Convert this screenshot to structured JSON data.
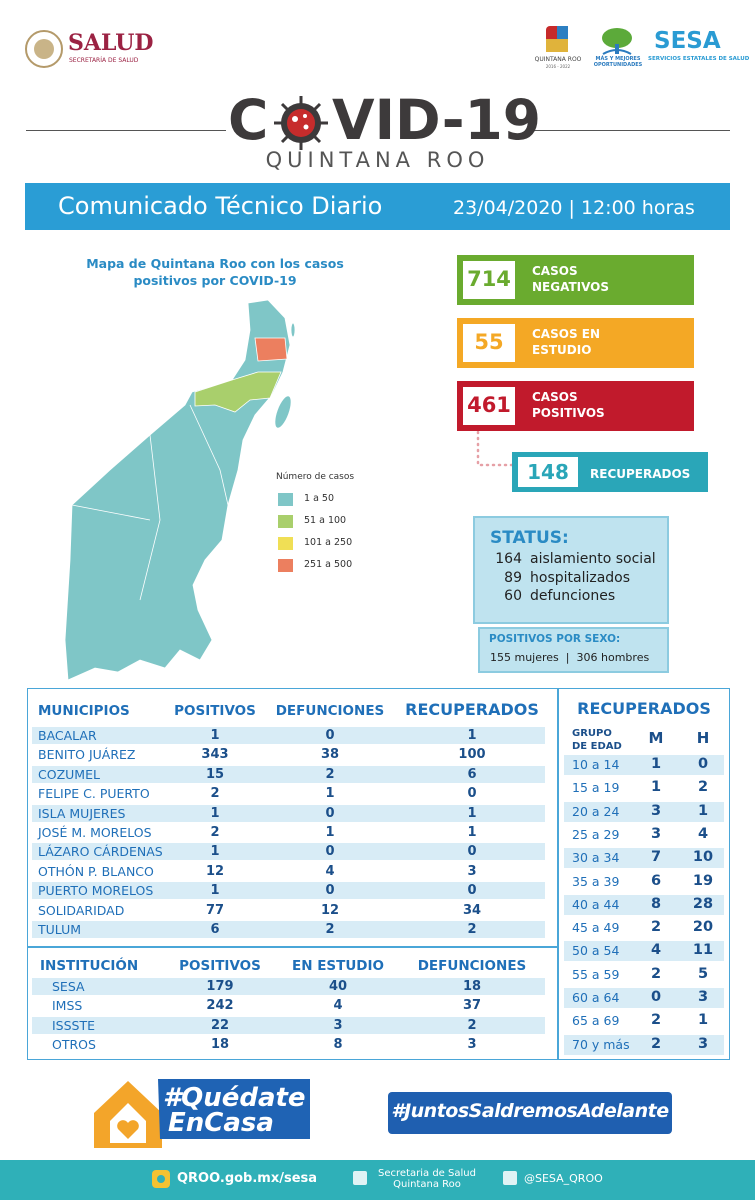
{
  "header": {
    "salud": "SALUD",
    "salud_sub": "SECRETARÍA DE SALUD",
    "qroo": "QUINTANA ROO",
    "qroo_years": "2016 - 2022",
    "oportunidades": "MÁS Y MEJORES OPORTUNIDADES",
    "sesa": "SESA",
    "sesa_sub": "SERVICIOS ESTATALES DE SALUD"
  },
  "title": {
    "start": "C",
    "end": "VID-19",
    "subtitle": "QUINTANA ROO"
  },
  "banner": {
    "title": "Comunicado Técnico Diario",
    "date": "23/04/2020 | 12:00 horas"
  },
  "map": {
    "title": "Mapa de Quintana Roo con los casos positivos por COVID-19",
    "legend_title": "Número de casos",
    "legend": [
      {
        "label": "1 a 50",
        "color": "#7fc6c7"
      },
      {
        "label": "51 a 100",
        "color": "#a9cf6c"
      },
      {
        "label": "101 a 250",
        "color": "#f0df55"
      },
      {
        "label": "251 a 500",
        "color": "#ec7f5f"
      }
    ]
  },
  "cases": [
    {
      "value": 714,
      "label": "CASOS NEGATIVOS",
      "color": "#6aab2f"
    },
    {
      "value": 55,
      "label": "CASOS EN ESTUDIO",
      "color": "#f4a825"
    },
    {
      "value": 461,
      "label": "CASOS POSITIVOS",
      "color": "#c11a2c"
    }
  ],
  "recovered": {
    "value": 148,
    "label": "RECUPERADOS",
    "color": "#2aa6b8"
  },
  "status": {
    "title": "STATUS:",
    "rows": [
      {
        "value": 164,
        "label": "aislamiento social"
      },
      {
        "value": 89,
        "label": "hospitalizados"
      },
      {
        "value": 60,
        "label": "defunciones"
      }
    ]
  },
  "sex": {
    "title": "POSITIVOS POR SEXO:",
    "women": 155,
    "women_label": "mujeres",
    "separator": "|",
    "men": 306,
    "men_label": "hombres"
  },
  "municipios": {
    "headers": [
      "MUNICIPIOS",
      "POSITIVOS",
      "DEFUNCIONES",
      "RECUPERADOS"
    ],
    "rows": [
      [
        "BACALAR",
        1,
        0,
        1
      ],
      [
        "BENITO JUÁREZ",
        343,
        38,
        100
      ],
      [
        "COZUMEL",
        15,
        2,
        6
      ],
      [
        "FELIPE C. PUERTO",
        2,
        1,
        0
      ],
      [
        "ISLA MUJERES",
        1,
        0,
        1
      ],
      [
        "JOSÉ M. MORELOS",
        2,
        1,
        1
      ],
      [
        "LÁZARO CÁRDENAS",
        1,
        0,
        0
      ],
      [
        "OTHÓN P. BLANCO",
        12,
        4,
        3
      ],
      [
        "PUERTO MORELOS",
        1,
        0,
        0
      ],
      [
        "SOLIDARIDAD",
        77,
        12,
        34
      ],
      [
        "TULUM",
        6,
        2,
        2
      ]
    ]
  },
  "instituciones": {
    "headers": [
      "INSTITUCIÓN",
      "POSITIVOS",
      "EN ESTUDIO",
      "DEFUNCIONES"
    ],
    "rows": [
      [
        "SESA",
        179,
        40,
        18
      ],
      [
        "IMSS",
        242,
        4,
        37
      ],
      [
        "ISSSTE",
        22,
        3,
        2
      ],
      [
        "OTROS",
        18,
        8,
        3
      ]
    ]
  },
  "recuperados": {
    "title": "RECUPERADOS",
    "headers": [
      "GRUPO DE EDAD",
      "M",
      "H"
    ],
    "rows": [
      [
        "10 a 14",
        1,
        0
      ],
      [
        "15 a 19",
        1,
        2
      ],
      [
        "20 a 24",
        3,
        1
      ],
      [
        "25 a 29",
        3,
        4
      ],
      [
        "30 a 34",
        7,
        10
      ],
      [
        "35 a 39",
        6,
        19
      ],
      [
        "40 a 44",
        8,
        28
      ],
      [
        "45 a 49",
        2,
        20
      ],
      [
        "50 a 54",
        4,
        11
      ],
      [
        "55 a 59",
        2,
        5
      ],
      [
        "60 a 64",
        0,
        3
      ],
      [
        "65 a 69",
        2,
        1
      ],
      [
        "70 y más",
        2,
        3
      ]
    ]
  },
  "footer": {
    "stay_home_1": "#Quédate",
    "stay_home_2": "EnCasa",
    "together": "#JuntosSaldremosAdelante",
    "web": "QROO.gob.mx/sesa",
    "facebook": "Secretaria de Salud Quintana Roo",
    "twitter": "@SESA_QROO"
  }
}
